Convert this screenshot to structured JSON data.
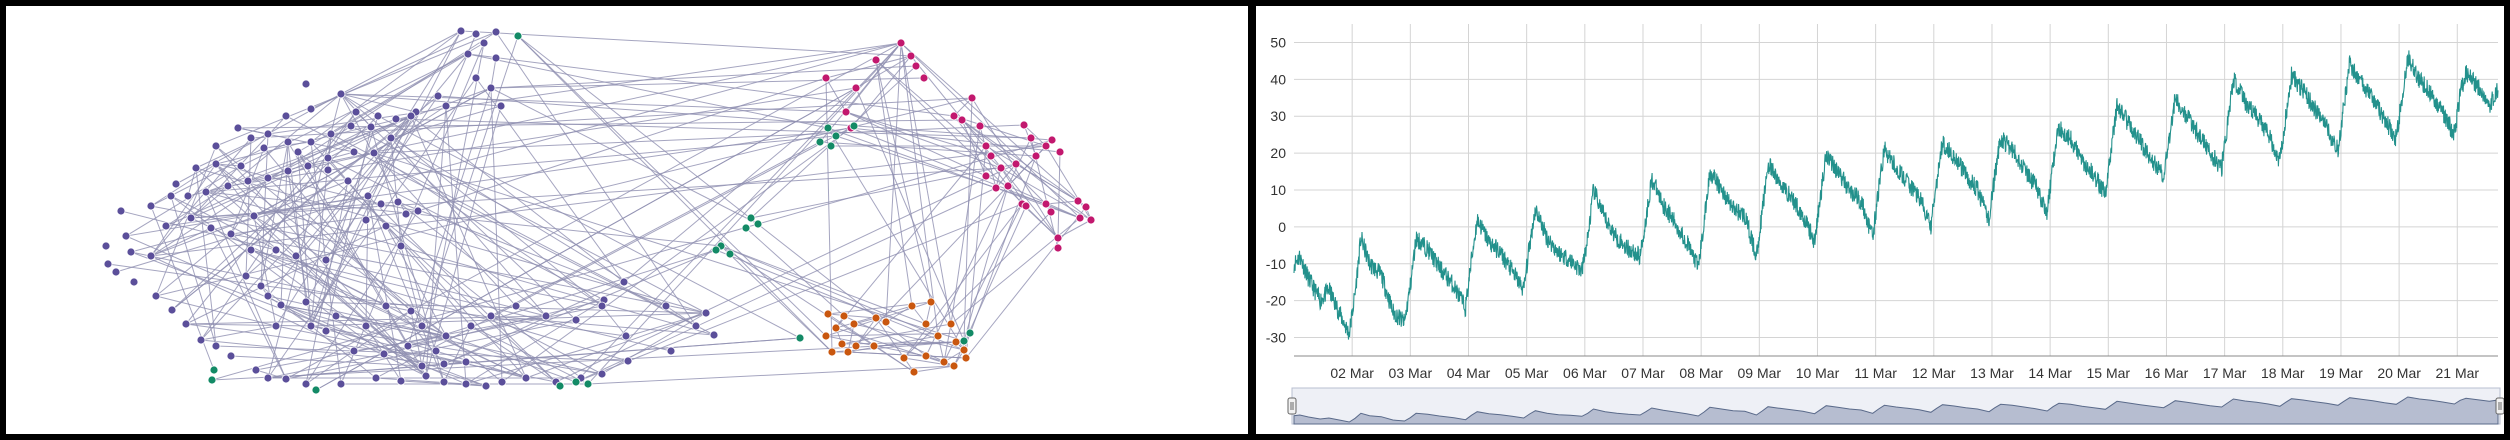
{
  "colors": {
    "purple": "#5b4f9a",
    "magenta": "#c2186e",
    "green": "#138a66",
    "orange": "#c9570f",
    "edge": "#8e8fb0",
    "line": "#23918c",
    "grid": "#d4d4d4",
    "navigator_fill": "#b6bdd0",
    "navigator_line": "#5a6a8a"
  },
  "network": {
    "node_groups": [
      "purple",
      "magenta",
      "green",
      "orange"
    ]
  },
  "chart_data": {
    "type": "line",
    "x_ticks": [
      "02 Mar",
      "03 Mar",
      "04 Mar",
      "05 Mar",
      "06 Mar",
      "07 Mar",
      "08 Mar",
      "09 Mar",
      "10 Mar",
      "11 Mar",
      "12 Mar",
      "13 Mar",
      "14 Mar",
      "15 Mar",
      "16 Mar",
      "17 Mar",
      "18 Mar",
      "19 Mar",
      "20 Mar",
      "21 Mar"
    ],
    "y_ticks": [
      50,
      40,
      30,
      20,
      10,
      0,
      -10,
      -20,
      -30
    ],
    "ylim": [
      -35,
      55
    ],
    "x_range_days": [
      0,
      20.7
    ],
    "series": [
      {
        "values": [
          [
            0.0,
            -10
          ],
          [
            0.1,
            -8
          ],
          [
            0.25,
            -14
          ],
          [
            0.45,
            -20
          ],
          [
            0.6,
            -17
          ],
          [
            0.8,
            -24
          ],
          [
            0.95,
            -29
          ],
          [
            1.05,
            -18
          ],
          [
            1.15,
            -3
          ],
          [
            1.3,
            -10
          ],
          [
            1.5,
            -13
          ],
          [
            1.7,
            -23
          ],
          [
            1.9,
            -26
          ],
          [
            2.0,
            -16
          ],
          [
            2.1,
            -3
          ],
          [
            2.3,
            -6
          ],
          [
            2.5,
            -11
          ],
          [
            2.75,
            -16
          ],
          [
            2.95,
            -22
          ],
          [
            3.05,
            -9
          ],
          [
            3.15,
            2
          ],
          [
            3.35,
            -4
          ],
          [
            3.55,
            -7
          ],
          [
            3.75,
            -12
          ],
          [
            3.95,
            -17
          ],
          [
            4.05,
            -5
          ],
          [
            4.15,
            5
          ],
          [
            4.35,
            -3
          ],
          [
            4.55,
            -7
          ],
          [
            4.75,
            -9
          ],
          [
            4.95,
            -12
          ],
          [
            5.05,
            -3
          ],
          [
            5.15,
            10
          ],
          [
            5.35,
            2
          ],
          [
            5.55,
            -3
          ],
          [
            5.75,
            -6
          ],
          [
            5.95,
            -8
          ],
          [
            6.05,
            2
          ],
          [
            6.15,
            13
          ],
          [
            6.35,
            6
          ],
          [
            6.55,
            1
          ],
          [
            6.75,
            -4
          ],
          [
            6.95,
            -11
          ],
          [
            7.05,
            1
          ],
          [
            7.15,
            15
          ],
          [
            7.35,
            10
          ],
          [
            7.55,
            5
          ],
          [
            7.75,
            3
          ],
          [
            7.95,
            -8
          ],
          [
            8.05,
            4
          ],
          [
            8.15,
            17
          ],
          [
            8.35,
            12
          ],
          [
            8.55,
            8
          ],
          [
            8.75,
            3
          ],
          [
            8.95,
            -4
          ],
          [
            9.05,
            8
          ],
          [
            9.15,
            20
          ],
          [
            9.35,
            15
          ],
          [
            9.55,
            10
          ],
          [
            9.75,
            7
          ],
          [
            9.95,
            -3
          ],
          [
            10.05,
            10
          ],
          [
            10.15,
            21
          ],
          [
            10.35,
            16
          ],
          [
            10.55,
            12
          ],
          [
            10.75,
            8
          ],
          [
            10.95,
            0
          ],
          [
            11.05,
            12
          ],
          [
            11.15,
            23
          ],
          [
            11.35,
            19
          ],
          [
            11.55,
            14
          ],
          [
            11.75,
            10
          ],
          [
            11.95,
            2
          ],
          [
            12.05,
            14
          ],
          [
            12.15,
            24
          ],
          [
            12.35,
            21
          ],
          [
            12.55,
            16
          ],
          [
            12.75,
            11
          ],
          [
            12.95,
            4
          ],
          [
            13.05,
            17
          ],
          [
            13.15,
            27
          ],
          [
            13.35,
            24
          ],
          [
            13.55,
            18
          ],
          [
            13.75,
            14
          ],
          [
            13.95,
            9
          ],
          [
            14.05,
            21
          ],
          [
            14.15,
            33
          ],
          [
            14.35,
            28
          ],
          [
            14.55,
            23
          ],
          [
            14.75,
            18
          ],
          [
            14.95,
            14
          ],
          [
            15.05,
            24
          ],
          [
            15.15,
            35
          ],
          [
            15.35,
            30
          ],
          [
            15.55,
            25
          ],
          [
            15.75,
            20
          ],
          [
            15.95,
            16
          ],
          [
            16.05,
            28
          ],
          [
            16.15,
            40
          ],
          [
            16.35,
            34
          ],
          [
            16.55,
            30
          ],
          [
            16.75,
            25
          ],
          [
            16.95,
            18
          ],
          [
            17.05,
            30
          ],
          [
            17.15,
            41
          ],
          [
            17.35,
            37
          ],
          [
            17.55,
            32
          ],
          [
            17.75,
            27
          ],
          [
            17.95,
            21
          ],
          [
            18.05,
            33
          ],
          [
            18.15,
            44
          ],
          [
            18.35,
            39
          ],
          [
            18.55,
            35
          ],
          [
            18.75,
            29
          ],
          [
            18.95,
            24
          ],
          [
            19.05,
            35
          ],
          [
            19.15,
            46
          ],
          [
            19.35,
            40
          ],
          [
            19.55,
            36
          ],
          [
            19.75,
            31
          ],
          [
            19.95,
            25
          ],
          [
            20.05,
            36
          ],
          [
            20.15,
            42
          ],
          [
            20.35,
            38
          ],
          [
            20.55,
            33
          ],
          [
            20.7,
            37
          ]
        ]
      }
    ]
  }
}
